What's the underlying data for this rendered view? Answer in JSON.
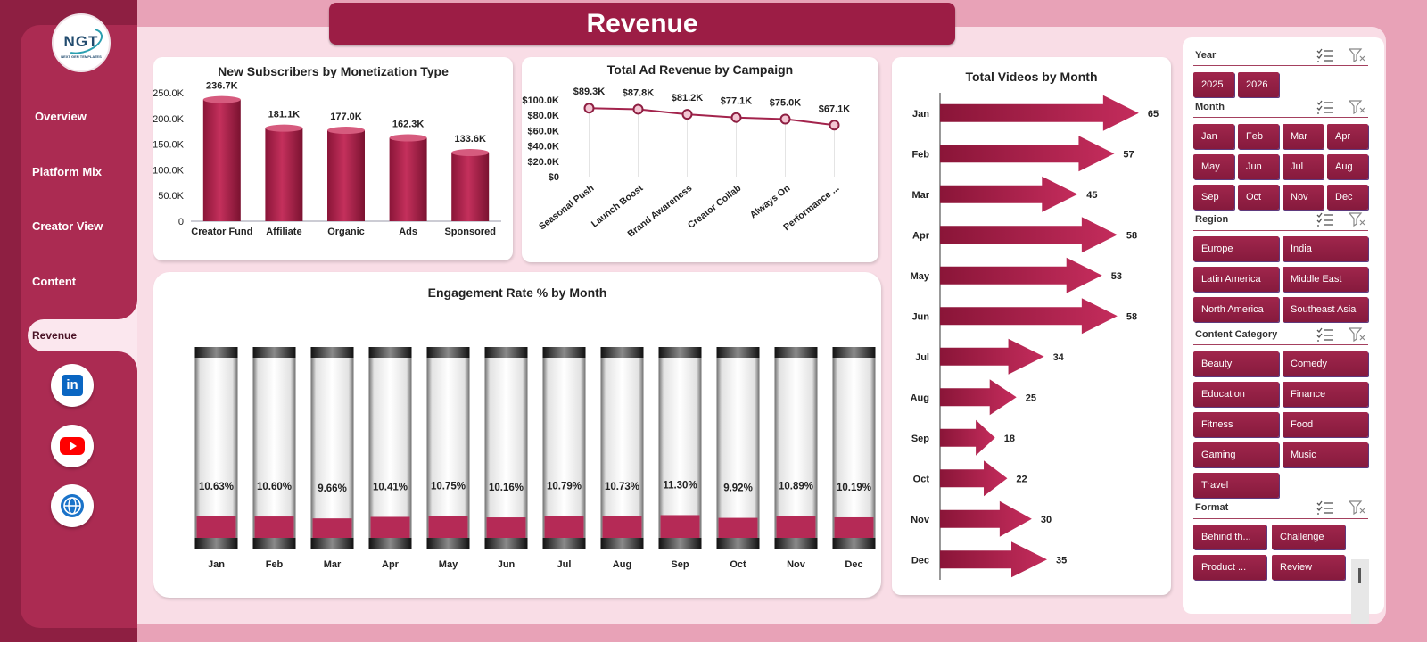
{
  "page": {
    "title": "Revenue"
  },
  "brand": {
    "logo_text": "NGT",
    "logo_subtext": "NEXT GEN TEMPLATES"
  },
  "colors": {
    "accent": "#9c1d45",
    "sidebar": "#ab2b52",
    "background": "#f9dde6"
  },
  "nav": [
    {
      "label": "Overview",
      "active": false
    },
    {
      "label": "Platform Mix",
      "active": false
    },
    {
      "label": "Creator View",
      "active": false
    },
    {
      "label": "Content",
      "active": false
    },
    {
      "label": "Revenue",
      "active": true
    }
  ],
  "social": [
    {
      "name": "linkedin-icon",
      "label": "in"
    },
    {
      "name": "youtube-icon",
      "label": ""
    },
    {
      "name": "globe-icon",
      "label": ""
    }
  ],
  "charts": {
    "subscribers": {
      "type": "bar",
      "title": "New Subscribers by Monetization Type",
      "categories": [
        "Creator Fund",
        "Affiliate",
        "Organic",
        "Ads",
        "Sponsored"
      ],
      "values": [
        236.7,
        181.1,
        177.0,
        162.3,
        133.6
      ],
      "labels": [
        "236.7K",
        "181.1K",
        "177.0K",
        "162.3K",
        "133.6K"
      ],
      "yticks": [
        "0",
        "50.0K",
        "100.0K",
        "150.0K",
        "200.0K",
        "250.0K"
      ],
      "ylim": [
        0,
        250
      ]
    },
    "ad_revenue": {
      "type": "line",
      "title": "Total Ad Revenue  by Campaign",
      "categories": [
        "Seasonal Push",
        "Launch Boost",
        "Brand Awareness",
        "Creator Collab",
        "Always On",
        "Performance ..."
      ],
      "values": [
        89.3,
        87.8,
        81.2,
        77.1,
        75.0,
        67.1
      ],
      "labels": [
        "$89.3K",
        "$87.8K",
        "$81.2K",
        "$77.1K",
        "$75.0K",
        "$67.1K"
      ],
      "yticks": [
        "$0",
        "$20.0K",
        "$40.0K",
        "$60.0K",
        "$80.0K",
        "$100.0K"
      ],
      "ylim": [
        0,
        100
      ]
    },
    "engagement": {
      "type": "bar",
      "title": "Engagement  Rate % by Month",
      "categories": [
        "Jan",
        "Feb",
        "Mar",
        "Apr",
        "May",
        "Jun",
        "Jul",
        "Aug",
        "Sep",
        "Oct",
        "Nov",
        "Dec"
      ],
      "values": [
        10.63,
        10.6,
        9.66,
        10.41,
        10.75,
        10.16,
        10.79,
        10.73,
        11.3,
        9.92,
        10.89,
        10.19
      ],
      "labels": [
        "10.63%",
        "10.60%",
        "9.66%",
        "10.41%",
        "10.75%",
        "10.16%",
        "10.79%",
        "10.73%",
        "11.30%",
        "9.92%",
        "10.89%",
        "10.19%"
      ],
      "ylim": [
        0,
        100
      ]
    },
    "videos": {
      "type": "bar",
      "title": "Total Videos by Month",
      "categories": [
        "Jan",
        "Feb",
        "Mar",
        "Apr",
        "May",
        "Jun",
        "Jul",
        "Aug",
        "Sep",
        "Oct",
        "Nov",
        "Dec"
      ],
      "values": [
        65,
        57,
        45,
        58,
        53,
        58,
        34,
        25,
        18,
        22,
        30,
        35
      ],
      "xlim": [
        0,
        70
      ]
    }
  },
  "slicers": {
    "year": {
      "label": "Year",
      "items": [
        "2025",
        "2026"
      ]
    },
    "month": {
      "label": "Month",
      "items": [
        "Jan",
        "Feb",
        "Mar",
        "Apr",
        "May",
        "Jun",
        "Jul",
        "Aug",
        "Sep",
        "Oct",
        "Nov",
        "Dec"
      ]
    },
    "region": {
      "label": "Region",
      "items": [
        "Europe",
        "India",
        "Latin America",
        "Middle East",
        "North America",
        "Southeast Asia"
      ]
    },
    "category": {
      "label": "Content Category",
      "items": [
        "Beauty",
        "Comedy",
        "Education",
        "Finance",
        "Fitness",
        "Food",
        "Gaming",
        "Music",
        "Travel"
      ]
    },
    "format": {
      "label": "Format",
      "items": [
        "Behind th...",
        "Challenge",
        "Product ...",
        "Review"
      ]
    }
  }
}
